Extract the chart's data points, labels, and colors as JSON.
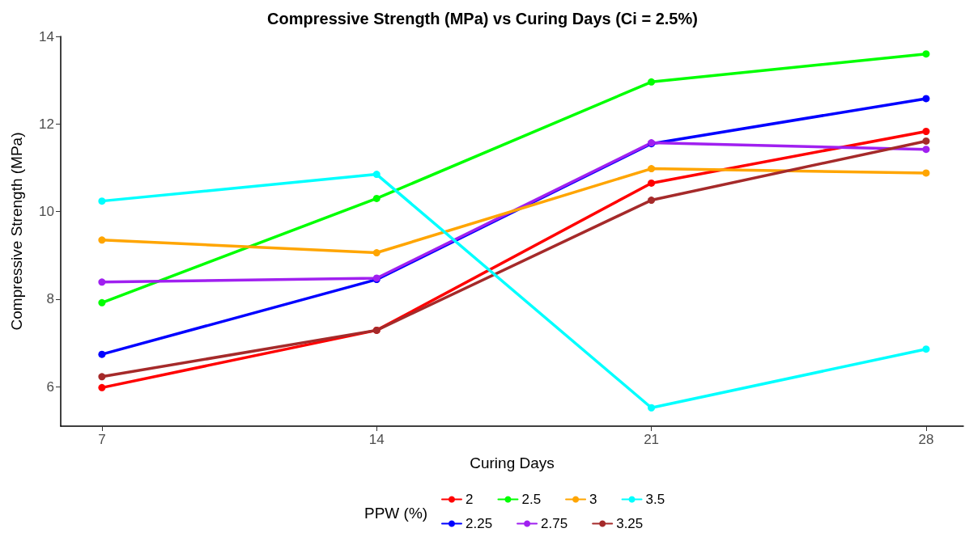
{
  "chart_data": {
    "type": "line",
    "title": "Compressive Strength (MPa) vs Curing Days (Ci = 2.5%)",
    "xlabel": "Curing Days",
    "ylabel": "Compressive Strength (MPa)",
    "legend_title": "PPW (%)",
    "x": [
      7,
      14,
      21,
      28
    ],
    "series": [
      {
        "name": "2",
        "color": "#ff0000",
        "values": [
          5.98,
          7.29,
          10.65,
          11.83
        ]
      },
      {
        "name": "2.25",
        "color": "#0000ff",
        "values": [
          6.74,
          8.45,
          11.55,
          12.58
        ]
      },
      {
        "name": "2.5",
        "color": "#00ff00",
        "values": [
          7.92,
          10.3,
          12.96,
          13.6
        ]
      },
      {
        "name": "2.75",
        "color": "#a020f0",
        "values": [
          8.39,
          8.48,
          11.57,
          11.42
        ]
      },
      {
        "name": "3",
        "color": "#ffa500",
        "values": [
          9.35,
          9.06,
          10.98,
          10.88
        ]
      },
      {
        "name": "3.25",
        "color": "#a52a2a",
        "values": [
          6.23,
          7.29,
          10.26,
          11.61
        ]
      },
      {
        "name": "3.5",
        "color": "#00ffff",
        "values": [
          10.24,
          10.85,
          5.52,
          6.86
        ]
      }
    ],
    "xlim": [
      5.95,
      28.95
    ],
    "xticks": [
      7,
      14,
      21,
      28
    ],
    "ylim": [
      5.1,
      14
    ],
    "yticks": [
      6,
      8,
      10,
      12,
      14
    ],
    "grid": false,
    "legend": "bottom",
    "marker": "circle",
    "line_style": "solid"
  }
}
